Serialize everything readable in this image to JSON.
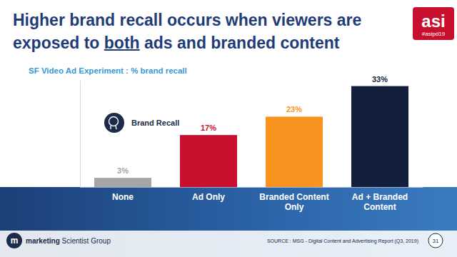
{
  "chart_data": {
    "type": "bar",
    "title": [
      "Higher brand recall occurs when viewers are exposed to ",
      "both",
      " ads and branded content"
    ],
    "subtitle": "SF Video Ad Experiment : % brand recall",
    "annotation": "Brand Recall",
    "categories": [
      "None",
      "Ad Only",
      "Branded Content Only",
      "Ad + Branded Content"
    ],
    "values": [
      3,
      17,
      23,
      33
    ],
    "value_labels": [
      "3%",
      "17%",
      "23%",
      "33%"
    ],
    "colors": [
      "#a6a6a6",
      "#c8102e",
      "#f7931e",
      "#141f3c"
    ],
    "ylim": [
      0,
      35
    ],
    "yticks": [],
    "data_labels": true,
    "tick_labels": "x",
    "source": "SOURCE : MSG - Digital Content and Advertising Report (Q3, 2019)"
  },
  "logo": {
    "text": "asi",
    "hashtag": "#asipd19"
  },
  "footer": {
    "mark": "m",
    "brand": "marketing Scientist Group",
    "page": 31
  }
}
